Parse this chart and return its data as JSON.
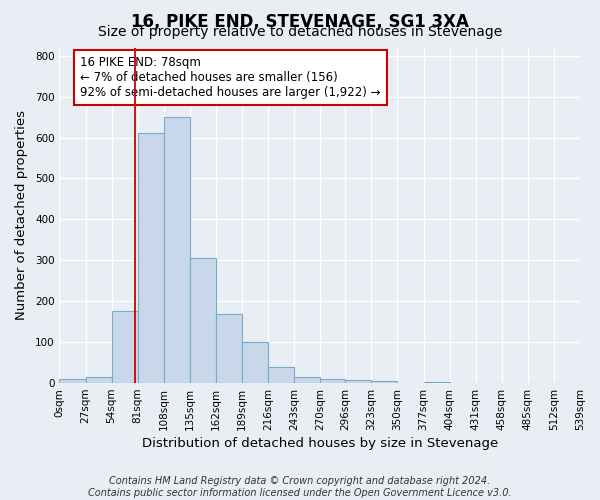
{
  "title": "16, PIKE END, STEVENAGE, SG1 3XA",
  "subtitle": "Size of property relative to detached houses in Stevenage",
  "xlabel": "Distribution of detached houses by size in Stevenage",
  "ylabel": "Number of detached properties",
  "bin_edges": [
    0,
    27,
    54,
    81,
    108,
    135,
    162,
    189,
    216,
    243,
    270,
    296,
    323,
    350,
    377,
    404,
    431,
    458,
    485,
    512,
    539
  ],
  "bar_heights": [
    10,
    15,
    175,
    610,
    650,
    305,
    170,
    100,
    40,
    15,
    10,
    8,
    5,
    0,
    3,
    0,
    0,
    0,
    0,
    0
  ],
  "bar_color": "#c8d8ea",
  "bar_edge_color": "#7aaac8",
  "vline_x": 78,
  "vline_color": "#cc0000",
  "annotation_text": "16 PIKE END: 78sqm\n← 7% of detached houses are smaller (156)\n92% of semi-detached houses are larger (1,922) →",
  "annotation_box_facecolor": "#ffffff",
  "annotation_box_edgecolor": "#cc0000",
  "ylim": [
    0,
    820
  ],
  "yticks": [
    0,
    100,
    200,
    300,
    400,
    500,
    600,
    700,
    800
  ],
  "tick_labels": [
    "0sqm",
    "27sqm",
    "54sqm",
    "81sqm",
    "108sqm",
    "135sqm",
    "162sqm",
    "189sqm",
    "216sqm",
    "243sqm",
    "270sqm",
    "296sqm",
    "323sqm",
    "350sqm",
    "377sqm",
    "404sqm",
    "431sqm",
    "458sqm",
    "485sqm",
    "512sqm",
    "539sqm"
  ],
  "footer_line1": "Contains HM Land Registry data © Crown copyright and database right 2024.",
  "footer_line2": "Contains public sector information licensed under the Open Government Licence v3.0.",
  "fig_background_color": "#e8eef4",
  "plot_background_color": "#e8eef4",
  "grid_color": "#ffffff",
  "title_fontsize": 12,
  "subtitle_fontsize": 10,
  "axis_label_fontsize": 9.5,
  "tick_fontsize": 7.5,
  "annotation_fontsize": 8.5,
  "footer_fontsize": 7
}
